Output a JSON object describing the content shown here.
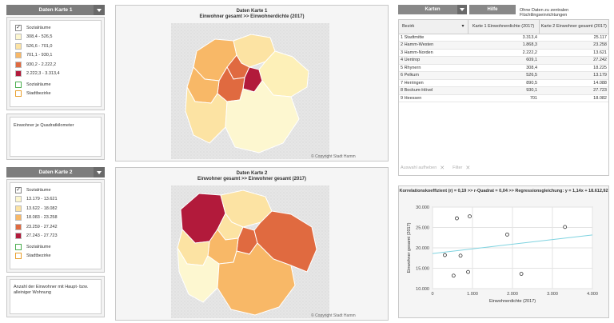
{
  "left": {
    "map1_dropdown": "Daten Karte 1",
    "map2_dropdown": "Daten Karte 2",
    "legend1": [
      {
        "label": "Sozialräume",
        "type": "checkbox",
        "checked": "✓"
      },
      {
        "label": "308,4 - 526,5",
        "color": "#fdf7d0"
      },
      {
        "label": "526,6 - 701,0",
        "color": "#fce3a3"
      },
      {
        "label": "701,1 - 930,1",
        "color": "#f8b867"
      },
      {
        "label": "930,2 - 2.222,2",
        "color": "#e06a40"
      },
      {
        "label": "2.222,3 - 3.313,4",
        "color": "#b21a3b"
      },
      {
        "label": "Sozialräume",
        "type": "box",
        "border": "#4caf50"
      },
      {
        "label": "Stadtbezirke",
        "type": "box",
        "border": "#e8a030"
      }
    ],
    "legend2": [
      {
        "label": "Sozialräume",
        "type": "checkbox",
        "checked": "✓"
      },
      {
        "label": "13.179 - 13.621",
        "color": "#fdf7d0"
      },
      {
        "label": "13.622 - 18.082",
        "color": "#fce3a3"
      },
      {
        "label": "18.083 - 23.258",
        "color": "#f8b867"
      },
      {
        "label": "23.259 - 27.242",
        "color": "#e06a40"
      },
      {
        "label": "27.243 - 27.723",
        "color": "#b21a3b"
      },
      {
        "label": "Sozialräume",
        "type": "box",
        "border": "#4caf50"
      },
      {
        "label": "Stadtbezirke",
        "type": "box",
        "border": "#e8a030"
      }
    ],
    "desc1": "Einwohner je Quadratkilometer",
    "desc2": "Anzahl der Einwohner mit Haupt- bzw. alleiniger Wohnung"
  },
  "maps": {
    "map1_title": "Daten Karte 1",
    "map1_subtitle": "Einwohner gesamt >> Einwohnerdichte (2017)",
    "map2_title": "Daten Karte 2",
    "map2_subtitle": "Einwohner gesamt >> Einwohner gesamt (2017)",
    "copyright": "© Copyright Stadt Hamm"
  },
  "right": {
    "karten_btn": "Karten",
    "hilfe_btn": "Hilfe",
    "note": "Ohne Daten zu zentralen Flüchtlingseinrichtungen",
    "table": {
      "col_bezirk": "Bezirk",
      "col_k1": "Karte 1 Einwohnerdichte (2017)",
      "col_k2": "Karte 2 Einwohner gesamt (2017)",
      "rows": [
        {
          "name": "1 Stadtmitte",
          "k1": "3.313,4",
          "k2": "25.117"
        },
        {
          "name": "2 Hamm-Westen",
          "k1": "1.868,3",
          "k2": "23.258"
        },
        {
          "name": "3 Hamm-Norden",
          "k1": "2.222,2",
          "k2": "13.621"
        },
        {
          "name": "4 Uentrop",
          "k1": "609,1",
          "k2": "27.242"
        },
        {
          "name": "5 Rhynern",
          "k1": "308,4",
          "k2": "18.225"
        },
        {
          "name": "6 Pelkum",
          "k1": "526,5",
          "k2": "13.179"
        },
        {
          "name": "7 Herringen",
          "k1": "890,5",
          "k2": "14.088"
        },
        {
          "name": "8 Bockum-Hövel",
          "k1": "930,1",
          "k2": "27.723"
        },
        {
          "name": "9 Heessen",
          "k1": "701",
          "k2": "18.082"
        }
      ]
    },
    "auswahl": "Auswahl aufheben",
    "filter": "Filter",
    "corr_title": "Korrelationskoeffizient (r) = 0,19  >> r-Quadrat =  0,04 >> Regressionsgleichung: y = 1,14x  + 18.612,92"
  },
  "chart_data": {
    "type": "scatter",
    "xlabel": "Einwohnerdichte (2017)",
    "ylabel": "Einwohner gesamt (2017)",
    "xlim": [
      0,
      4000
    ],
    "ylim": [
      10000,
      30000
    ],
    "xticks": [
      "0",
      "1.000",
      "2.000",
      "3.000",
      "4.000"
    ],
    "yticks": [
      "10.000",
      "15.000",
      "20.000",
      "25.000",
      "30.000"
    ],
    "points": [
      {
        "x": 3313.4,
        "y": 25117
      },
      {
        "x": 1868.3,
        "y": 23258
      },
      {
        "x": 2222.2,
        "y": 13621
      },
      {
        "x": 609.1,
        "y": 27242
      },
      {
        "x": 308.4,
        "y": 18225
      },
      {
        "x": 526.5,
        "y": 13179
      },
      {
        "x": 890.5,
        "y": 14088
      },
      {
        "x": 930.1,
        "y": 27723
      },
      {
        "x": 701,
        "y": 18082
      }
    ],
    "regression": {
      "slope": 1.14,
      "intercept": 18612.92
    },
    "colors": {
      "points": "#333333",
      "line": "#7fd3e0"
    }
  }
}
